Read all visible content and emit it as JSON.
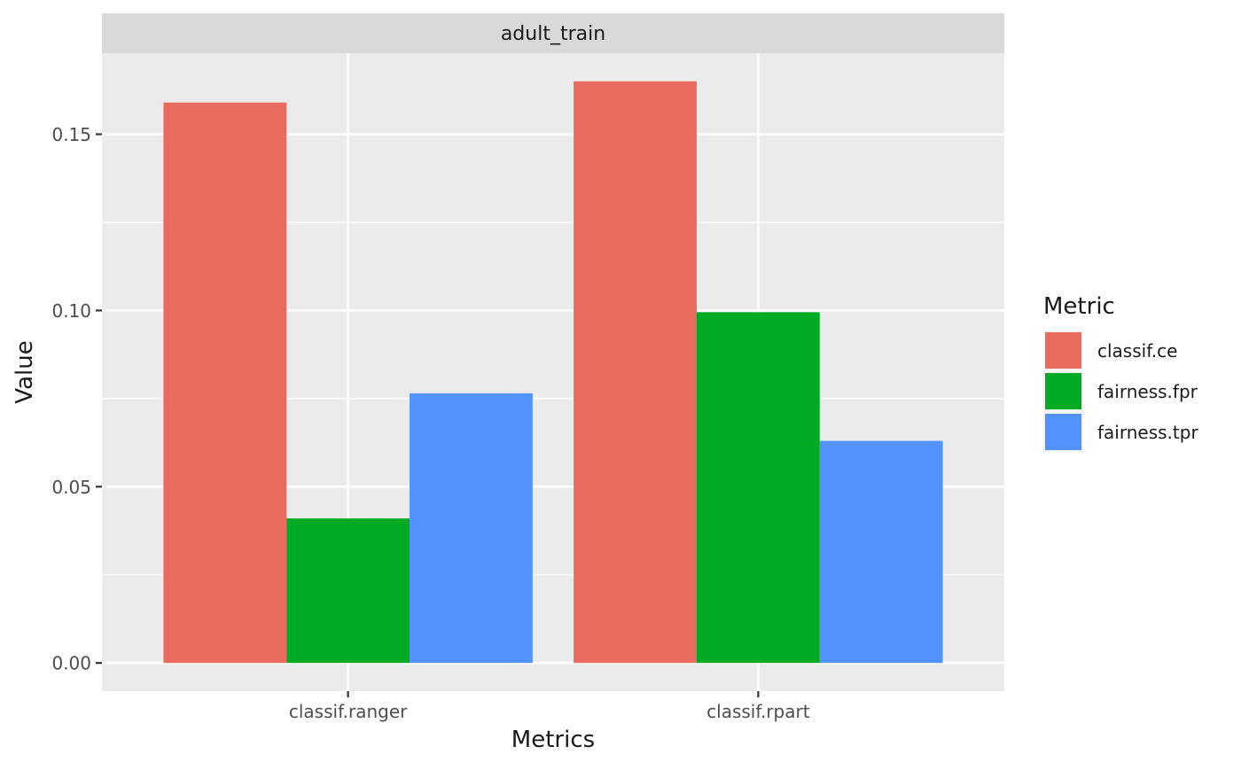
{
  "chart_data": {
    "type": "bar",
    "facet_label": "adult_train",
    "xlabel": "Metrics",
    "ylabel": "Value",
    "categories": [
      "classif.ranger",
      "classif.rpart"
    ],
    "series": [
      {
        "name": "classif.ce",
        "color": "#E96A5F",
        "values": [
          0.159,
          0.165
        ]
      },
      {
        "name": "fairness.fpr",
        "color": "#00AB24",
        "values": [
          0.041,
          0.0995
        ]
      },
      {
        "name": "fairness.tpr",
        "color": "#5192FB",
        "values": [
          0.0765,
          0.063
        ]
      }
    ],
    "ylim": [
      -0.008,
      0.173
    ],
    "y_ticks": [
      0.0,
      0.05,
      0.1,
      0.15
    ],
    "y_tick_labels": [
      "0.00",
      "0.05",
      "0.10",
      "0.15"
    ],
    "grid": true,
    "legend": {
      "title": "Metric",
      "placement": "right"
    },
    "colors": {
      "panel_bg": "#EBEBEB",
      "strip_bg": "#D9D9D9",
      "grid": "#FFFFFF",
      "axis_text": "#4D4D4D",
      "title_text": "#1A1A1A"
    }
  }
}
